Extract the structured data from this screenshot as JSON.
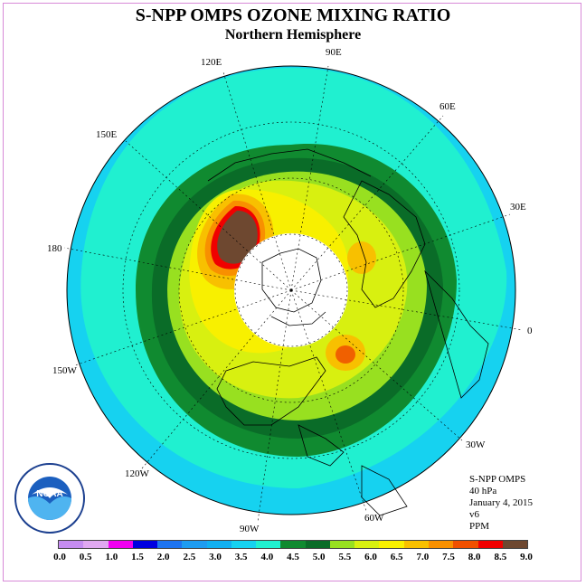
{
  "title": "S-NPP OMPS OZONE MIXING RATIO",
  "subtitle": "Northern Hemisphere",
  "longitudes": [
    "90E",
    "60E",
    "30E",
    "0",
    "30W",
    "60W",
    "90W",
    "120W",
    "150W",
    "180",
    "150E",
    "120E"
  ],
  "info": {
    "instrument": "S-NPP OMPS",
    "level": "40 hPa",
    "date": "January 4, 2015",
    "version": "v6",
    "units": "PPM"
  },
  "legend": {
    "ticks": [
      "0.0",
      "0.5",
      "1.0",
      "1.5",
      "2.0",
      "2.5",
      "3.0",
      "3.5",
      "4.0",
      "4.5",
      "5.0",
      "5.5",
      "6.0",
      "6.5",
      "7.0",
      "7.5",
      "8.0",
      "8.5",
      "9.0"
    ],
    "colors": [
      "#c58cf0",
      "#e0a8f0",
      "#f000f0",
      "#0000e0",
      "#1e74f0",
      "#1e9cf0",
      "#12b0f0",
      "#16d2f0",
      "#20f0d0",
      "#108a30",
      "#0a6c28",
      "#98e020",
      "#d8f010",
      "#f8f000",
      "#f8c000",
      "#f89000",
      "#f05000",
      "#f00000",
      "#6e4830"
    ]
  },
  "logo_text": "NOAA",
  "logo_ring_text": "NATIONAL OCEANIC AND ATMOSPHERIC ADMINISTRATION · U.S. DEPARTMENT OF COMMERCE"
}
